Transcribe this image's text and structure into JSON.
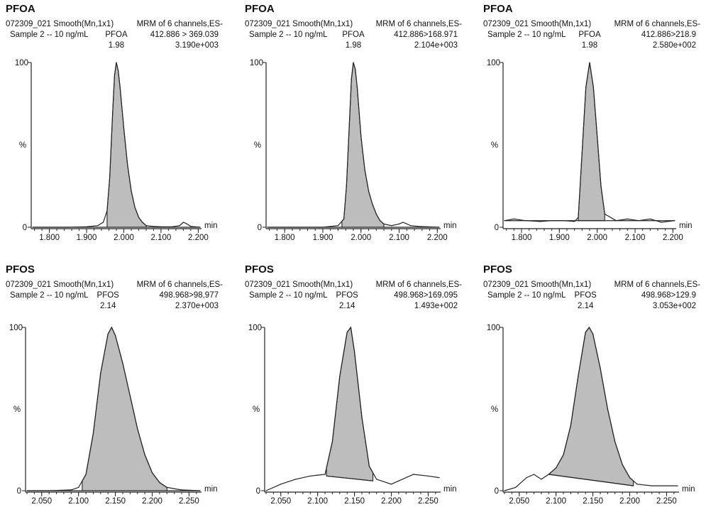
{
  "chart_data": [
    {
      "type": "line",
      "title": "PFOA",
      "file_label": "072309_021 Smooth(Mn,1x1)",
      "sample_label": "Sample 2 -- 10 ng/mL",
      "channel_label": "MRM of 6 channels,ES-",
      "transition": "412.886 > 369.039",
      "intensity": "3.190e+003",
      "peak_name": "PFOA",
      "peak_rt_label": "1.98",
      "peak_rt": 1.98,
      "ylabel": "%",
      "yticks": [
        "100",
        "0"
      ],
      "xlabel": "min",
      "xlim": [
        1.755,
        2.205
      ],
      "xticks": [
        "1.800",
        "1.900",
        "2.000",
        "2.100",
        "2.200"
      ],
      "baseline": [
        [
          1.755,
          0
        ],
        [
          2.205,
          0
        ]
      ],
      "peak_start": 1.955,
      "peak_end": 2.06,
      "x": [
        1.755,
        1.8,
        1.85,
        1.9,
        1.93,
        1.945,
        1.955,
        1.962,
        1.97,
        1.975,
        1.98,
        1.985,
        1.99,
        2.0,
        2.01,
        2.02,
        2.03,
        2.04,
        2.05,
        2.06,
        2.08,
        2.1,
        2.13,
        2.15,
        2.16,
        2.17,
        2.18,
        2.205
      ],
      "y": [
        0,
        0,
        0,
        0.3,
        1,
        3,
        10,
        30,
        70,
        92,
        100,
        95,
        85,
        60,
        38,
        22,
        12,
        6,
        3,
        1,
        0.5,
        0.3,
        0.3,
        1,
        3,
        2,
        0.5,
        0
      ]
    },
    {
      "type": "line",
      "title": "PFOA",
      "file_label": "072309_021 Smooth(Mn,1x1)",
      "sample_label": "Sample 2 -- 10 ng/mL",
      "channel_label": "MRM of 6 channels,ES-",
      "transition": "412.886>168.971",
      "intensity": "2.104e+003",
      "peak_name": "PFOA",
      "peak_rt_label": "1.98",
      "peak_rt": 1.98,
      "ylabel": "%",
      "yticks": [
        "100",
        "0"
      ],
      "xlabel": "min",
      "xlim": [
        1.755,
        2.205
      ],
      "xticks": [
        "1.800",
        "1.900",
        "2.000",
        "2.100",
        "2.200"
      ],
      "baseline": [
        [
          1.755,
          0
        ],
        [
          2.205,
          0
        ]
      ],
      "peak_start": 1.95,
      "peak_end": 2.06,
      "x": [
        1.755,
        1.8,
        1.85,
        1.9,
        1.94,
        1.955,
        1.962,
        1.97,
        1.975,
        1.98,
        1.985,
        1.99,
        2.0,
        2.01,
        2.02,
        2.03,
        2.04,
        2.05,
        2.06,
        2.08,
        2.1,
        2.11,
        2.13,
        2.15,
        2.205
      ],
      "y": [
        0,
        0,
        0,
        0,
        1,
        5,
        25,
        65,
        90,
        100,
        96,
        85,
        55,
        35,
        22,
        14,
        8,
        4,
        2,
        1,
        2,
        3,
        1,
        0.5,
        0
      ]
    },
    {
      "type": "line",
      "title": "PFOA",
      "file_label": "072309_021 Smooth(Mn,1x1)",
      "sample_label": "Sample 2 -- 10 ng/mL",
      "channel_label": "MRM of 6 channels,ES-",
      "transition": "412.886>218.9",
      "intensity": "2.580e+002",
      "peak_name": "PFOA",
      "peak_rt_label": "1.98",
      "peak_rt": 1.98,
      "ylabel": "%",
      "yticks": [
        "100",
        "0"
      ],
      "xlabel": "min",
      "xlim": [
        1.755,
        2.205
      ],
      "xticks": [
        "1.800",
        "1.900",
        "2.000",
        "2.100",
        "2.200"
      ],
      "baseline": [
        [
          1.755,
          4
        ],
        [
          2.205,
          4
        ]
      ],
      "peak_start": 1.95,
      "peak_end": 2.02,
      "x": [
        1.755,
        1.78,
        1.81,
        1.85,
        1.88,
        1.91,
        1.94,
        1.95,
        1.96,
        1.97,
        1.98,
        1.99,
        2.0,
        2.01,
        2.02,
        2.05,
        2.08,
        2.11,
        2.14,
        2.17,
        2.205
      ],
      "y": [
        4,
        5,
        4,
        3.5,
        4,
        4,
        3.5,
        6,
        45,
        85,
        100,
        85,
        55,
        25,
        8,
        4,
        5,
        4,
        5,
        3,
        4
      ]
    },
    {
      "type": "line",
      "title": "PFOS",
      "file_label": "072309_021 Smooth(Mn,1x1)",
      "sample_label": "Sample 2 -- 10 ng/mL",
      "channel_label": "MRM of 6 channels,ES-",
      "transition": "498.968>98,977",
      "intensity": "2.370e+003",
      "peak_name": "PFOS",
      "peak_rt_label": "2.14",
      "peak_rt": 2.14,
      "ylabel": "%",
      "yticks": [
        "100",
        "0"
      ],
      "xlabel": "min",
      "xlim": [
        2.03,
        2.265
      ],
      "xticks": [
        "2.050",
        "2.100",
        "2.150",
        "2.200",
        "2.250"
      ],
      "baseline": [
        [
          2.03,
          0
        ],
        [
          2.265,
          0
        ]
      ],
      "peak_start": 2.105,
      "peak_end": 2.22,
      "x": [
        2.03,
        2.06,
        2.09,
        2.1,
        2.11,
        2.12,
        2.13,
        2.14,
        2.145,
        2.15,
        2.16,
        2.17,
        2.18,
        2.19,
        2.2,
        2.21,
        2.22,
        2.24,
        2.265
      ],
      "y": [
        0,
        0,
        0.5,
        2,
        10,
        35,
        72,
        96,
        100,
        95,
        78,
        58,
        38,
        22,
        11,
        5,
        2,
        0.5,
        0
      ]
    },
    {
      "type": "line",
      "title": "PFOS",
      "file_label": "072309_021 Smooth(Mn,1x1)",
      "sample_label": "Sample 2 -- 10 ng/mL",
      "channel_label": "MRM of 6 channels,ES-",
      "transition": "498.968>169.095",
      "intensity": "1.493e+002",
      "peak_name": "PFOS",
      "peak_rt_label": "2.14",
      "peak_rt": 2.14,
      "ylabel": "%",
      "yticks": [
        "100",
        "0"
      ],
      "xlabel": "min",
      "xlim": [
        2.03,
        2.265
      ],
      "xticks": [
        "2.050",
        "2.100",
        "2.150",
        "2.200",
        "2.250"
      ],
      "baseline": [
        [
          2.112,
          9
        ],
        [
          2.175,
          6
        ]
      ],
      "peak_start": 2.112,
      "peak_end": 2.175,
      "x": [
        2.03,
        2.05,
        2.07,
        2.09,
        2.1,
        2.11,
        2.12,
        2.13,
        2.14,
        2.145,
        2.15,
        2.16,
        2.17,
        2.18,
        2.2,
        2.21,
        2.23,
        2.25,
        2.265
      ],
      "y": [
        0,
        4,
        7,
        9,
        9.5,
        10,
        30,
        70,
        97,
        100,
        85,
        45,
        15,
        7,
        4,
        6,
        10,
        9,
        8
      ]
    },
    {
      "type": "line",
      "title": "PFOS",
      "file_label": "072309_021 Smooth(Mn,1x1)",
      "sample_label": "Sample 2 -- 10 ng/mL",
      "channel_label": "MRM of 6 channels,ES-",
      "transition": "498.968>129.9",
      "intensity": "3.053e+002",
      "peak_name": "PFOS",
      "peak_rt_label": "2.14",
      "peak_rt": 2.14,
      "ylabel": "%",
      "yticks": [
        "100",
        "0"
      ],
      "xlabel": "min",
      "xlim": [
        2.03,
        2.265
      ],
      "xticks": [
        "2.050",
        "2.100",
        "2.150",
        "2.200",
        "2.250"
      ],
      "baseline": [
        [
          2.09,
          10
        ],
        [
          2.205,
          3
        ]
      ],
      "peak_start": 2.09,
      "peak_end": 2.205,
      "x": [
        2.03,
        2.045,
        2.06,
        2.07,
        2.08,
        2.09,
        2.1,
        2.11,
        2.12,
        2.13,
        2.14,
        2.145,
        2.15,
        2.16,
        2.17,
        2.18,
        2.19,
        2.2,
        2.21,
        2.23,
        2.25,
        2.265
      ],
      "y": [
        0,
        2,
        8,
        10,
        7,
        10,
        14,
        22,
        40,
        70,
        97,
        100,
        96,
        75,
        50,
        30,
        16,
        8,
        4,
        3,
        3,
        3
      ]
    }
  ]
}
